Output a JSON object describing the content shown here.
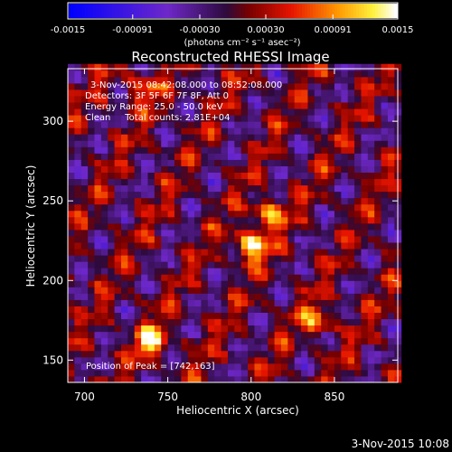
{
  "chart_data": {
    "type": "heatmap",
    "title": "Reconstructed RHESSI Image",
    "xlabel": "Heliocentric X (arcsec)",
    "ylabel": "Heliocentric Y (arcsec)",
    "xlim": [
      690,
      888
    ],
    "ylim": [
      136,
      333
    ],
    "x_ticks": [
      "700",
      "750",
      "800",
      "850"
    ],
    "y_ticks": [
      "150",
      "200",
      "250",
      "300"
    ],
    "colorbar": {
      "ticks": [
        "-0.0015",
        "-0.00091",
        "-0.00030",
        "0.00030",
        "0.00091",
        "0.0015"
      ],
      "range": [
        -0.0015,
        0.0015
      ],
      "unit_label": "(photons cm⁻² s⁻¹ asec⁻²)"
    },
    "annotations": {
      "time_range": "3-Nov-2015 08:42:08.000 to 08:52:08.000",
      "detectors": "Detectors: 3F 5F 6F 7F 8F, Att 0",
      "energy": "Energy Range: 25.0 - 50.0 keV",
      "clean": "Clean     Total counts: 2.81E+04",
      "peak": "Position of Peak = [742,163]"
    },
    "peak": {
      "x": 742,
      "y": 163
    },
    "bright_sources": [
      {
        "x": 800,
        "y": 222,
        "value": 0.0014
      },
      {
        "x": 740,
        "y": 162,
        "value": 0.0014
      },
      {
        "x": 810,
        "y": 242,
        "value": 0.0011
      },
      {
        "x": 840,
        "y": 175,
        "value": 0.0009
      },
      {
        "x": 735,
        "y": 320,
        "value": 0.0008
      }
    ]
  },
  "footer": {
    "timestamp": "3-Nov-2015 10:08"
  },
  "colors": {
    "background": "#000000",
    "text": "#ffffff"
  }
}
